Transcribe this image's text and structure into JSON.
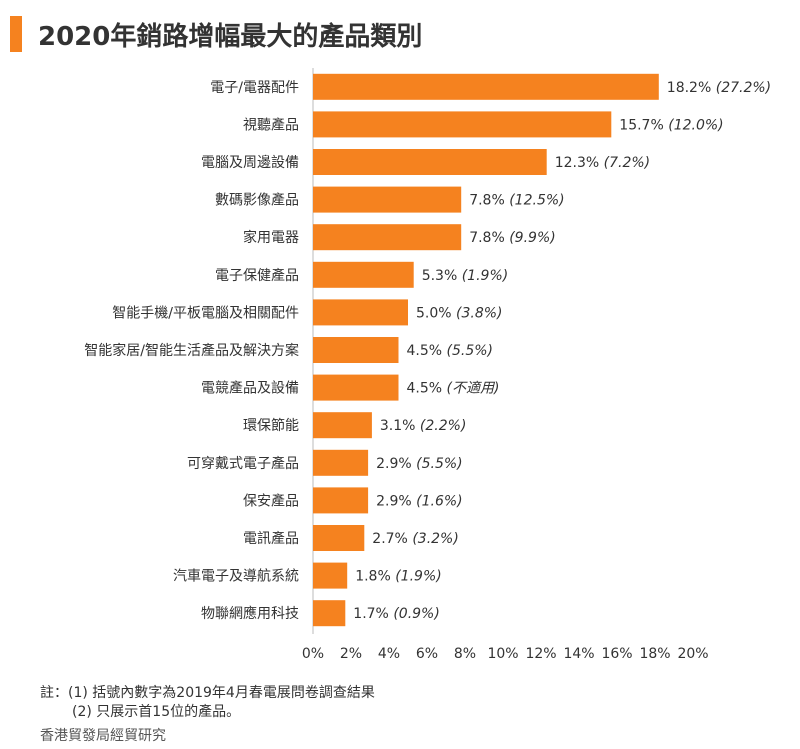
{
  "title": "2020年銷路增幅最大的產品類別",
  "notes": {
    "line1": "註：(1) 括號內數字為2019年4月春電展問卷調查結果",
    "line2": "(2) 只展示首15位的產品。"
  },
  "source": "香港貿發局經貿研究",
  "colors": {
    "bar": "#f5821f",
    "accent": "#f5821f",
    "axis": "#bbbbbb",
    "text": "#333333"
  },
  "chart_data": {
    "type": "bar",
    "orientation": "horizontal",
    "title": "2020年銷路增幅最大的產品類別",
    "xlabel": "",
    "ylabel": "",
    "xlim": [
      0,
      20
    ],
    "x_ticks": [
      "0%",
      "2%",
      "4%",
      "6%",
      "8%",
      "10%",
      "12%",
      "14%",
      "16%",
      "18%",
      "20%"
    ],
    "grid": false,
    "categories": [
      "電子/電器配件",
      "視聽產品",
      "電腦及周邊設備",
      "數碼影像產品",
      "家用電器",
      "電子保健產品",
      "智能手機/平板電腦及相關配件",
      "智能家居/智能生活產品及解決方案",
      "電競產品及設備",
      "環保節能",
      "可穿戴式電子產品",
      "保安產品",
      "電訊產品",
      "汽車電子及導航系統",
      "物聯網應用科技"
    ],
    "values": [
      18.2,
      15.7,
      12.3,
      7.8,
      7.8,
      5.3,
      5.0,
      4.5,
      4.5,
      3.1,
      2.9,
      2.9,
      2.7,
      1.8,
      1.7
    ],
    "value_labels": [
      "18.2%",
      "15.7%",
      "12.3%",
      "7.8%",
      "7.8%",
      "5.3%",
      "5.0%",
      "4.5%",
      "4.5%",
      "3.1%",
      "2.9%",
      "2.9%",
      "2.7%",
      "1.8%",
      "1.7%"
    ],
    "previous_labels": [
      "(27.2%)",
      "(12.0%)",
      "(7.2%)",
      "(12.5%)",
      "(9.9%)",
      "(1.9%)",
      "(3.8%)",
      "(5.5%)",
      "(不適用)",
      "(2.2%)",
      "(5.5%)",
      "(1.6%)",
      "(3.2%)",
      "(1.9%)",
      "(0.9%)"
    ]
  }
}
